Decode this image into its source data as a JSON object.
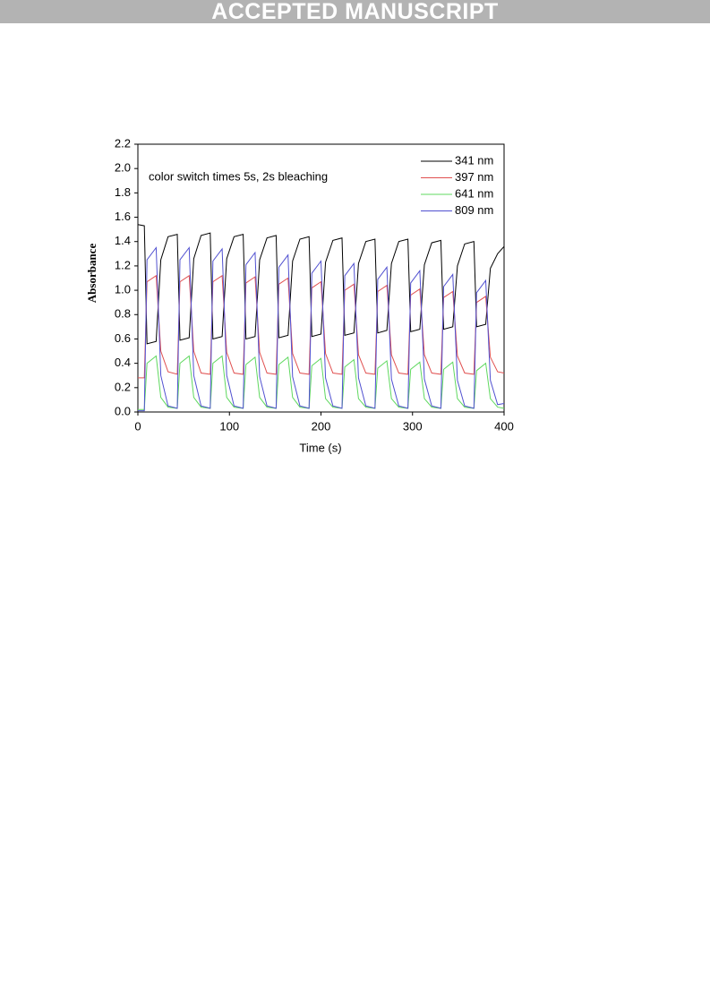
{
  "header": {
    "banner": "ACCEPTED MANUSCRIPT"
  },
  "chart_data": {
    "type": "line",
    "annotation": "color switch times 5s, 2s bleaching",
    "xlabel": "Time (s)",
    "ylabel": "Absorbance",
    "xlim": [
      0,
      400
    ],
    "ylim": [
      0,
      2.2
    ],
    "xticks": [
      0,
      100,
      200,
      300,
      400
    ],
    "yticks": [
      {
        "value": 0,
        "label": "0.0"
      },
      0.2,
      0.4,
      0.6,
      0.8,
      {
        "value": 1,
        "label": "1.0"
      },
      1.2,
      1.4,
      1.6,
      1.8,
      {
        "value": 2,
        "label": "2.0"
      },
      2.2
    ],
    "legend": "upper right",
    "x": [
      0,
      7,
      10,
      20,
      25,
      33,
      43,
      46,
      56,
      61,
      69,
      79,
      82,
      92,
      97,
      105,
      115,
      118,
      128,
      133,
      141,
      151,
      154,
      164,
      169,
      177,
      187,
      190,
      200,
      205,
      213,
      223,
      226,
      236,
      241,
      249,
      259,
      262,
      272,
      277,
      285,
      295,
      298,
      308,
      313,
      321,
      331,
      334,
      344,
      349,
      357,
      367,
      370,
      380,
      385,
      393,
      400
    ],
    "series": [
      {
        "name": "341 nm",
        "color": "#000000",
        "values": [
          1.54,
          1.53,
          0.56,
          0.58,
          1.25,
          1.44,
          1.46,
          0.59,
          0.61,
          1.26,
          1.45,
          1.47,
          0.6,
          0.62,
          1.26,
          1.44,
          1.46,
          0.6,
          0.62,
          1.25,
          1.43,
          1.45,
          0.61,
          0.63,
          1.24,
          1.42,
          1.44,
          0.62,
          0.64,
          1.23,
          1.41,
          1.43,
          0.63,
          0.65,
          1.22,
          1.4,
          1.42,
          0.65,
          0.67,
          1.22,
          1.4,
          1.42,
          0.66,
          0.68,
          1.21,
          1.39,
          1.41,
          0.68,
          0.7,
          1.2,
          1.38,
          1.4,
          0.7,
          0.72,
          1.18,
          1.3,
          1.36
        ]
      },
      {
        "name": "397 nm",
        "color": "#e05050",
        "values": [
          0.28,
          0.28,
          1.07,
          1.12,
          0.5,
          0.33,
          0.31,
          1.07,
          1.12,
          0.5,
          0.32,
          0.31,
          1.07,
          1.12,
          0.49,
          0.32,
          0.31,
          1.06,
          1.11,
          0.49,
          0.32,
          0.31,
          1.05,
          1.1,
          0.48,
          0.32,
          0.31,
          1.02,
          1.07,
          0.48,
          0.32,
          0.31,
          1.0,
          1.05,
          0.47,
          0.32,
          0.31,
          0.99,
          1.04,
          0.47,
          0.32,
          0.31,
          0.96,
          1.01,
          0.47,
          0.32,
          0.31,
          0.94,
          0.99,
          0.46,
          0.32,
          0.31,
          0.9,
          0.95,
          0.45,
          0.33,
          0.32
        ]
      },
      {
        "name": "641 nm",
        "color": "#5fd85f",
        "values": [
          0.02,
          0.02,
          0.4,
          0.46,
          0.12,
          0.04,
          0.03,
          0.4,
          0.46,
          0.12,
          0.04,
          0.03,
          0.4,
          0.46,
          0.12,
          0.04,
          0.03,
          0.39,
          0.45,
          0.12,
          0.04,
          0.03,
          0.39,
          0.45,
          0.12,
          0.04,
          0.03,
          0.38,
          0.44,
          0.11,
          0.04,
          0.03,
          0.37,
          0.43,
          0.11,
          0.04,
          0.03,
          0.36,
          0.42,
          0.11,
          0.04,
          0.03,
          0.35,
          0.41,
          0.11,
          0.04,
          0.03,
          0.35,
          0.41,
          0.11,
          0.04,
          0.03,
          0.34,
          0.4,
          0.11,
          0.04,
          0.03
        ]
      },
      {
        "name": "809 nm",
        "color": "#5050d0",
        "values": [
          0.01,
          0.01,
          1.25,
          1.35,
          0.3,
          0.05,
          0.03,
          1.25,
          1.35,
          0.3,
          0.05,
          0.03,
          1.24,
          1.34,
          0.3,
          0.05,
          0.03,
          1.21,
          1.31,
          0.29,
          0.05,
          0.03,
          1.19,
          1.29,
          0.29,
          0.05,
          0.03,
          1.14,
          1.24,
          0.28,
          0.05,
          0.03,
          1.12,
          1.22,
          0.28,
          0.05,
          0.03,
          1.09,
          1.19,
          0.27,
          0.05,
          0.03,
          1.06,
          1.16,
          0.27,
          0.05,
          0.03,
          1.03,
          1.13,
          0.26,
          0.05,
          0.03,
          0.98,
          1.08,
          0.26,
          0.06,
          0.07
        ]
      }
    ]
  }
}
